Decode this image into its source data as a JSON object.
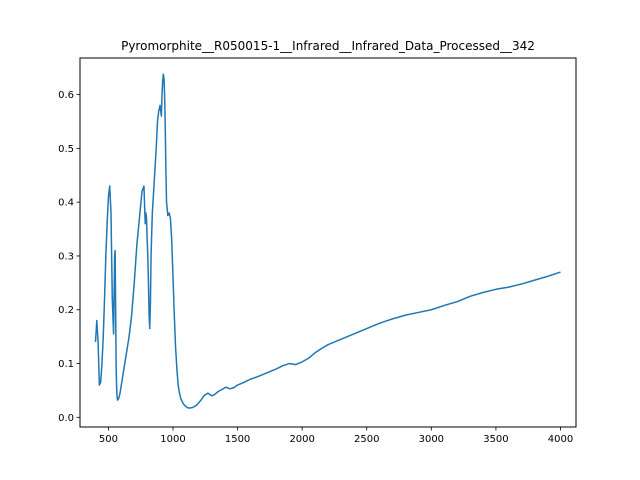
{
  "chart_data": {
    "type": "line",
    "title": "Pyromorphite__R050015-1__Infrared__Infrared_Data_Processed__342",
    "xlabel": "",
    "ylabel": "",
    "xlim": [
      280,
      4120
    ],
    "ylim": [
      -0.018,
      0.668
    ],
    "grid": false,
    "x_ticks": [
      500,
      1000,
      1500,
      2000,
      2500,
      3000,
      3500,
      4000
    ],
    "y_ticks": [
      0.0,
      0.1,
      0.2,
      0.3,
      0.4,
      0.5,
      0.6
    ],
    "series": [
      {
        "color": "#1f77b4",
        "x": [
          400,
          410,
          420,
          430,
          440,
          450,
          460,
          470,
          480,
          490,
          500,
          510,
          520,
          525,
          530,
          540,
          548,
          552,
          556,
          560,
          565,
          570,
          580,
          590,
          600,
          620,
          640,
          660,
          680,
          700,
          720,
          740,
          760,
          775,
          785,
          790,
          795,
          800,
          805,
          810,
          815,
          820,
          825,
          830,
          840,
          850,
          860,
          870,
          880,
          890,
          900,
          910,
          915,
          920,
          925,
          930,
          935,
          940,
          945,
          950,
          960,
          970,
          980,
          990,
          1000,
          1010,
          1020,
          1030,
          1040,
          1050,
          1060,
          1080,
          1100,
          1120,
          1150,
          1180,
          1210,
          1240,
          1270,
          1300,
          1320,
          1350,
          1380,
          1410,
          1440,
          1470,
          1500,
          1550,
          1600,
          1650,
          1700,
          1750,
          1800,
          1850,
          1900,
          1950,
          2000,
          2050,
          2100,
          2150,
          2200,
          2300,
          2400,
          2500,
          2600,
          2700,
          2800,
          2900,
          3000,
          3100,
          3200,
          3300,
          3400,
          3500,
          3600,
          3700,
          3800,
          3900,
          4000
        ],
        "y": [
          0.14,
          0.18,
          0.14,
          0.06,
          0.065,
          0.1,
          0.15,
          0.22,
          0.3,
          0.36,
          0.41,
          0.43,
          0.38,
          0.3,
          0.22,
          0.155,
          0.3,
          0.31,
          0.2,
          0.09,
          0.045,
          0.032,
          0.035,
          0.045,
          0.06,
          0.09,
          0.12,
          0.15,
          0.19,
          0.25,
          0.32,
          0.37,
          0.42,
          0.43,
          0.36,
          0.38,
          0.37,
          0.33,
          0.3,
          0.25,
          0.19,
          0.165,
          0.21,
          0.3,
          0.38,
          0.42,
          0.46,
          0.5,
          0.55,
          0.57,
          0.58,
          0.56,
          0.6,
          0.625,
          0.638,
          0.63,
          0.6,
          0.54,
          0.46,
          0.4,
          0.375,
          0.38,
          0.37,
          0.33,
          0.26,
          0.19,
          0.13,
          0.09,
          0.06,
          0.045,
          0.035,
          0.025,
          0.02,
          0.017,
          0.018,
          0.022,
          0.03,
          0.04,
          0.045,
          0.04,
          0.042,
          0.048,
          0.052,
          0.056,
          0.053,
          0.055,
          0.06,
          0.065,
          0.071,
          0.075,
          0.08,
          0.085,
          0.09,
          0.096,
          0.1,
          0.098,
          0.103,
          0.11,
          0.12,
          0.128,
          0.135,
          0.145,
          0.155,
          0.165,
          0.175,
          0.183,
          0.19,
          0.195,
          0.2,
          0.208,
          0.215,
          0.225,
          0.232,
          0.238,
          0.242,
          0.248,
          0.255,
          0.262,
          0.27
        ]
      }
    ]
  }
}
